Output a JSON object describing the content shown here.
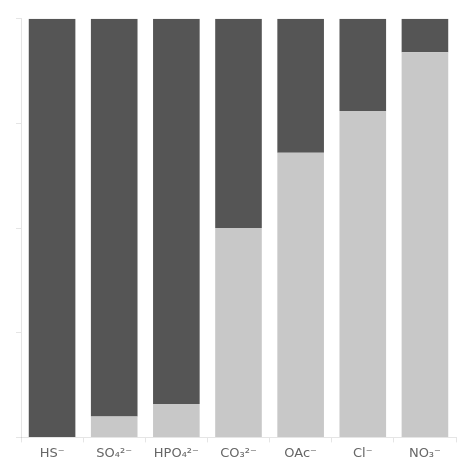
{
  "chart_data": {
    "type": "bar",
    "stacked": true,
    "categories": [
      "HS⁻",
      "SO₄²⁻",
      "HPO₄²⁻",
      "CO₃²⁻",
      "OAc⁻",
      "Cl⁻",
      "NO₃⁻"
    ],
    "series": [
      {
        "color": "#C8C8C8",
        "values": [
          0.0,
          0.05,
          0.08,
          0.5,
          0.68,
          0.78,
          0.92
        ]
      },
      {
        "color": "#555555",
        "values": [
          1.0,
          0.95,
          0.92,
          0.5,
          0.32,
          0.22,
          0.08
        ]
      }
    ],
    "ylim": [
      0,
      1
    ],
    "yticks": [
      0.0,
      0.25,
      0.5,
      0.75,
      1.0
    ],
    "grid": false,
    "tick_labels": "x"
  }
}
